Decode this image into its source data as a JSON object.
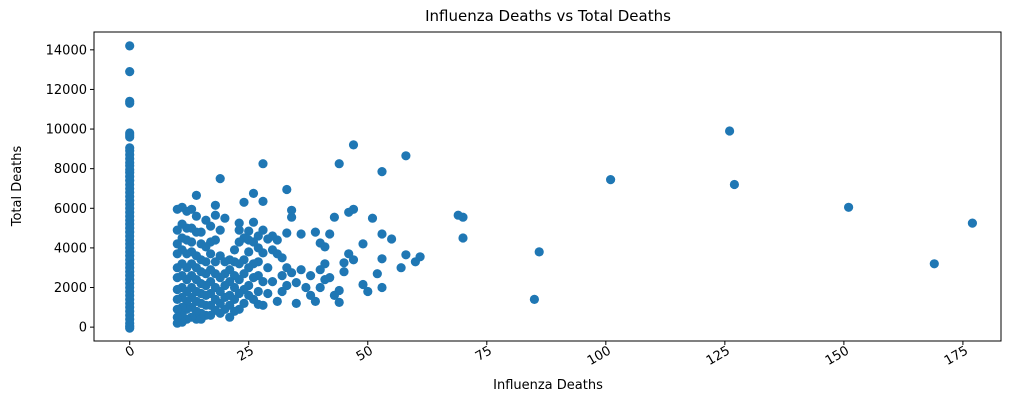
{
  "chart_data": {
    "type": "scatter",
    "title": "Influenza Deaths vs Total Deaths",
    "xlabel": "Influenza Deaths",
    "ylabel": "Total Deaths",
    "xlim": [
      -7.5,
      183
    ],
    "ylim": [
      -700,
      14900
    ],
    "xticks": [
      0,
      25,
      50,
      75,
      100,
      125,
      150,
      175
    ],
    "yticks": [
      0,
      2000,
      4000,
      6000,
      8000,
      10000,
      12000,
      14000
    ],
    "xtick_rotation": 30,
    "grid": false,
    "marker_color": "#1f77b4",
    "points": [
      [
        0,
        14200
      ],
      [
        0,
        12900
      ],
      [
        0,
        11400
      ],
      [
        0,
        11300
      ],
      [
        0,
        9800
      ],
      [
        0,
        9700
      ],
      [
        0,
        9600
      ],
      [
        0,
        9050
      ],
      [
        0,
        8900
      ],
      [
        0,
        8700
      ],
      [
        0,
        8500
      ],
      [
        0,
        8300
      ],
      [
        0,
        8150
      ],
      [
        0,
        7950
      ],
      [
        0,
        7800
      ],
      [
        0,
        7600
      ],
      [
        0,
        7400
      ],
      [
        0,
        7200
      ],
      [
        0,
        7000
      ],
      [
        0,
        6800
      ],
      [
        0,
        6600
      ],
      [
        0,
        6400
      ],
      [
        0,
        6200
      ],
      [
        0,
        6000
      ],
      [
        0,
        5800
      ],
      [
        0,
        5600
      ],
      [
        0,
        5400
      ],
      [
        0,
        5200
      ],
      [
        0,
        5000
      ],
      [
        0,
        4800
      ],
      [
        0,
        4600
      ],
      [
        0,
        4400
      ],
      [
        0,
        4200
      ],
      [
        0,
        4000
      ],
      [
        0,
        3800
      ],
      [
        0,
        3600
      ],
      [
        0,
        3400
      ],
      [
        0,
        3200
      ],
      [
        0,
        3000
      ],
      [
        0,
        2800
      ],
      [
        0,
        2600
      ],
      [
        0,
        2400
      ],
      [
        0,
        2200
      ],
      [
        0,
        2000
      ],
      [
        0,
        1800
      ],
      [
        0,
        1600
      ],
      [
        0,
        1400
      ],
      [
        0,
        1200
      ],
      [
        0,
        1000
      ],
      [
        0,
        800
      ],
      [
        0,
        600
      ],
      [
        0,
        400
      ],
      [
        0,
        200
      ],
      [
        0,
        50
      ],
      [
        0,
        -50
      ],
      [
        177,
        5250
      ],
      [
        169,
        3200
      ],
      [
        151,
        6050
      ],
      [
        127,
        7200
      ],
      [
        126,
        9900
      ],
      [
        101,
        7450
      ],
      [
        86,
        3800
      ],
      [
        85,
        1400
      ],
      [
        70,
        4500
      ],
      [
        70,
        5550
      ],
      [
        69,
        5650
      ],
      [
        61,
        3550
      ],
      [
        60,
        3300
      ],
      [
        58,
        8650
      ],
      [
        58,
        3650
      ],
      [
        57,
        3000
      ],
      [
        55,
        4450
      ],
      [
        53,
        7850
      ],
      [
        53,
        4700
      ],
      [
        53,
        3450
      ],
      [
        53,
        2000
      ],
      [
        52,
        2700
      ],
      [
        51,
        5500
      ],
      [
        50,
        1800
      ],
      [
        49,
        4200
      ],
      [
        49,
        2150
      ],
      [
        47,
        9200
      ],
      [
        47,
        5950
      ],
      [
        47,
        3400
      ],
      [
        46,
        5800
      ],
      [
        46,
        3700
      ],
      [
        45,
        3250
      ],
      [
        45,
        2800
      ],
      [
        44,
        8250
      ],
      [
        44,
        1850
      ],
      [
        44,
        1250
      ],
      [
        43,
        5550
      ],
      [
        43,
        1600
      ],
      [
        42,
        2500
      ],
      [
        42,
        4700
      ],
      [
        41,
        2400
      ],
      [
        41,
        3200
      ],
      [
        41,
        4050
      ],
      [
        40,
        4250
      ],
      [
        40,
        2000
      ],
      [
        40,
        2900
      ],
      [
        39,
        4800
      ],
      [
        39,
        1300
      ],
      [
        38,
        2600
      ],
      [
        38,
        1600
      ],
      [
        37,
        2000
      ],
      [
        36,
        4700
      ],
      [
        36,
        2900
      ],
      [
        35,
        2250
      ],
      [
        35,
        1200
      ],
      [
        34,
        2750
      ],
      [
        34,
        5550
      ],
      [
        34,
        5900
      ],
      [
        33,
        6950
      ],
      [
        33,
        4750
      ],
      [
        33,
        3000
      ],
      [
        33,
        2100
      ],
      [
        32,
        3500
      ],
      [
        32,
        2600
      ],
      [
        32,
        1800
      ],
      [
        31,
        3700
      ],
      [
        31,
        4400
      ],
      [
        31,
        1300
      ],
      [
        30,
        4600
      ],
      [
        30,
        3900
      ],
      [
        30,
        2300
      ],
      [
        29,
        4450
      ],
      [
        29,
        3000
      ],
      [
        29,
        1700
      ],
      [
        28,
        8250
      ],
      [
        28,
        6350
      ],
      [
        28,
        4900
      ],
      [
        28,
        3750
      ],
      [
        28,
        2300
      ],
      [
        28,
        1100
      ],
      [
        27,
        4600
      ],
      [
        27,
        4000
      ],
      [
        27,
        3300
      ],
      [
        27,
        2600
      ],
      [
        27,
        1800
      ],
      [
        27,
        1150
      ],
      [
        26,
        6750
      ],
      [
        26,
        5300
      ],
      [
        26,
        4300
      ],
      [
        26,
        3200
      ],
      [
        26,
        2500
      ],
      [
        26,
        1400
      ],
      [
        25,
        4850
      ],
      [
        25,
        4400
      ],
      [
        25,
        3800
      ],
      [
        25,
        3000
      ],
      [
        25,
        2100
      ],
      [
        25,
        1600
      ],
      [
        24,
        6300
      ],
      [
        24,
        4500
      ],
      [
        24,
        3400
      ],
      [
        24,
        2700
      ],
      [
        24,
        1900
      ],
      [
        24,
        1200
      ],
      [
        23,
        5250
      ],
      [
        23,
        4900
      ],
      [
        23,
        4300
      ],
      [
        23,
        3200
      ],
      [
        23,
        2400
      ],
      [
        23,
        1700
      ],
      [
        23,
        900
      ],
      [
        22,
        3900
      ],
      [
        22,
        3300
      ],
      [
        22,
        2600
      ],
      [
        22,
        2000
      ],
      [
        22,
        1400
      ],
      [
        22,
        800
      ],
      [
        21,
        3400
      ],
      [
        21,
        2900
      ],
      [
        21,
        2300
      ],
      [
        21,
        1600
      ],
      [
        21,
        1100
      ],
      [
        21,
        500
      ],
      [
        20,
        5500
      ],
      [
        20,
        3300
      ],
      [
        20,
        2700
      ],
      [
        20,
        2100
      ],
      [
        20,
        1500
      ],
      [
        20,
        900
      ],
      [
        19,
        7500
      ],
      [
        19,
        4900
      ],
      [
        19,
        3600
      ],
      [
        19,
        2500
      ],
      [
        19,
        1800
      ],
      [
        19,
        1200
      ],
      [
        19,
        700
      ],
      [
        18,
        6150
      ],
      [
        18,
        5650
      ],
      [
        18,
        4400
      ],
      [
        18,
        3300
      ],
      [
        18,
        2700
      ],
      [
        18,
        2000
      ],
      [
        18,
        1400
      ],
      [
        18,
        850
      ],
      [
        17,
        5100
      ],
      [
        17,
        4300
      ],
      [
        17,
        3700
      ],
      [
        17,
        2900
      ],
      [
        17,
        2300
      ],
      [
        17,
        1700
      ],
      [
        17,
        1100
      ],
      [
        17,
        600
      ],
      [
        16,
        5400
      ],
      [
        16,
        4050
      ],
      [
        16,
        3300
      ],
      [
        16,
        2700
      ],
      [
        16,
        2100
      ],
      [
        16,
        1600
      ],
      [
        16,
        1100
      ],
      [
        16,
        600
      ],
      [
        15,
        4800
      ],
      [
        15,
        4200
      ],
      [
        15,
        3400
      ],
      [
        15,
        2800
      ],
      [
        15,
        2200
      ],
      [
        15,
        1700
      ],
      [
        15,
        1200
      ],
      [
        15,
        700
      ],
      [
        15,
        400
      ],
      [
        14,
        6650
      ],
      [
        14,
        5600
      ],
      [
        14,
        4800
      ],
      [
        14,
        3600
      ],
      [
        14,
        3000
      ],
      [
        14,
        2400
      ],
      [
        14,
        1800
      ],
      [
        14,
        1300
      ],
      [
        14,
        800
      ],
      [
        14,
        400
      ],
      [
        13,
        5950
      ],
      [
        13,
        5000
      ],
      [
        13,
        4300
      ],
      [
        13,
        3800
      ],
      [
        13,
        3200
      ],
      [
        13,
        2600
      ],
      [
        13,
        2000
      ],
      [
        13,
        1500
      ],
      [
        13,
        1000
      ],
      [
        13,
        500
      ],
      [
        12,
        5850
      ],
      [
        12,
        5000
      ],
      [
        12,
        4400
      ],
      [
        12,
        3700
      ],
      [
        12,
        3000
      ],
      [
        12,
        2400
      ],
      [
        12,
        1800
      ],
      [
        12,
        1300
      ],
      [
        12,
        900
      ],
      [
        12,
        400
      ],
      [
        11,
        6050
      ],
      [
        11,
        5200
      ],
      [
        11,
        4500
      ],
      [
        11,
        3900
      ],
      [
        11,
        3200
      ],
      [
        11,
        2600
      ],
      [
        11,
        2000
      ],
      [
        11,
        1500
      ],
      [
        11,
        1000
      ],
      [
        11,
        600
      ],
      [
        11,
        250
      ],
      [
        10,
        5950
      ],
      [
        10,
        4900
      ],
      [
        10,
        4200
      ],
      [
        10,
        3700
      ],
      [
        10,
        3000
      ],
      [
        10,
        2500
      ],
      [
        10,
        1900
      ],
      [
        10,
        1400
      ],
      [
        10,
        900
      ],
      [
        10,
        500
      ],
      [
        10,
        200
      ]
    ]
  }
}
